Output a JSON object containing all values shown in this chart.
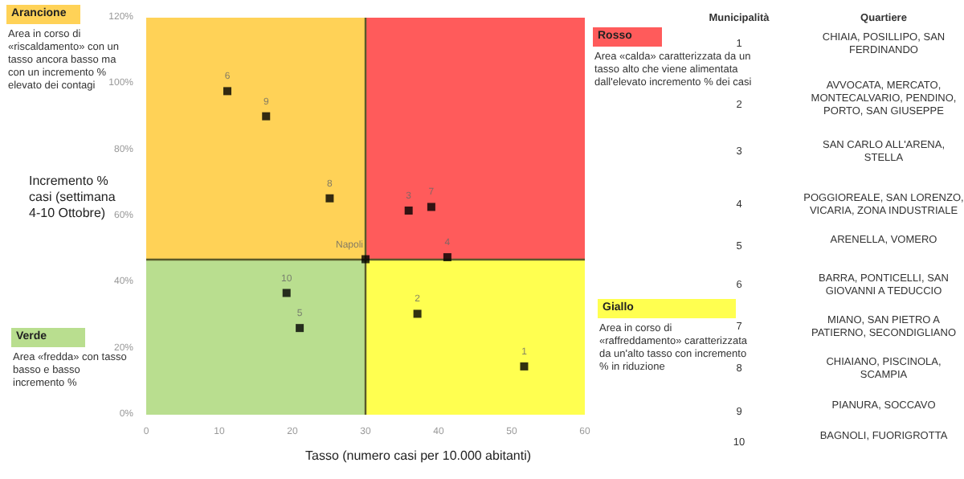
{
  "chart_data": {
    "type": "scatter",
    "xlabel": "Tasso (numero casi per 10.000 abitanti)",
    "ylabel": "Incremento % casi (settimana 4-10 Ottobre)",
    "series": [
      {
        "name": "1",
        "color": "#000000",
        "x": [
          51.7
        ],
        "values": [
          14.6
        ]
      },
      {
        "name": "2",
        "color": "#000000",
        "x": [
          37.1
        ],
        "values": [
          30.5
        ]
      },
      {
        "name": "3",
        "color": "#000000",
        "x": [
          35.9
        ],
        "values": [
          61.7
        ]
      },
      {
        "name": "4",
        "color": "#000000",
        "x": [
          41.2
        ],
        "values": [
          47.6
        ]
      },
      {
        "name": "5",
        "color": "#000000",
        "x": [
          21.0
        ],
        "values": [
          26.2
        ]
      },
      {
        "name": "6",
        "color": "#000000",
        "x": [
          11.1
        ],
        "values": [
          97.8
        ]
      },
      {
        "name": "7",
        "color": "#000000",
        "x": [
          39.0
        ],
        "values": [
          62.8
        ]
      },
      {
        "name": "8",
        "color": "#000000",
        "x": [
          25.1
        ],
        "values": [
          65.4
        ]
      },
      {
        "name": "9",
        "color": "#000000",
        "x": [
          16.4
        ],
        "values": [
          90.2
        ]
      },
      {
        "name": "10",
        "color": "#000000",
        "x": [
          19.2
        ],
        "values": [
          36.8
        ]
      },
      {
        "name": "Napoli",
        "color": "#000000",
        "x": [
          30
        ],
        "values": [
          47
        ]
      }
    ],
    "xlim": [
      0,
      60
    ],
    "xticks": [
      0,
      10,
      20,
      30,
      40,
      50,
      60
    ],
    "ylim": [
      0,
      120
    ],
    "yticks": [
      {
        "value": 0,
        "label": "0%"
      },
      {
        "value": 20,
        "label": "20%"
      },
      {
        "value": 40,
        "label": "40%"
      },
      {
        "value": 60,
        "label": "60%"
      },
      {
        "value": 80,
        "label": "80%"
      },
      {
        "value": 100,
        "label": "100%"
      },
      {
        "value": 120,
        "label": "120%"
      }
    ],
    "ref_lines": [
      {
        "axis": "x",
        "value": 30,
        "color": "#5a5a2a"
      },
      {
        "axis": "y",
        "value": 47,
        "color": "#5a5a2a"
      }
    ],
    "grid": false,
    "legend": false,
    "marker": "square",
    "annotations": [
      "Arancione",
      "Area in corso di «riscaldamento» con un tasso ancora basso ma con un incremento % elevato dei contagi",
      "Rosso",
      "Area «calda» caratterizzata da un tasso alto che viene alimentata dall'elevato incremento % dei casi",
      "Verde",
      "Area «fredda» con tasso basso e basso incremento %",
      "Giallo",
      "Area in corso di «raffreddamento» caratterizzata da un'alto tasso con incremento % in riduzione",
      "Municipalità",
      "Quartiere",
      "1",
      "CHIAIA, POSILLIPO, SAN FERDINANDO",
      "2",
      "AVVOCATA, MERCATO, MONTECALVARIO, PENDINO, PORTO, SAN GIUSEPPE",
      "3",
      "SAN CARLO ALL'ARENA, STELLA",
      "4",
      "POGGIOREALE, SAN LORENZO, VICARIA, ZONA INDUSTRIALE",
      "5",
      "ARENELLA, VOMERO",
      "6",
      "BARRA, PONTICELLI, SAN GIOVANNI A TEDUCCIO",
      "7",
      "MIANO, SAN PIETRO A PATIERNO, SECONDIGLIANO",
      "8",
      "CHIAIANO, PISCINOLA, SCAMPIA",
      "9",
      "PIANURA, SOCCAVO",
      "10",
      "BAGNOLI, FUORIGROTTA"
    ]
  }
}
